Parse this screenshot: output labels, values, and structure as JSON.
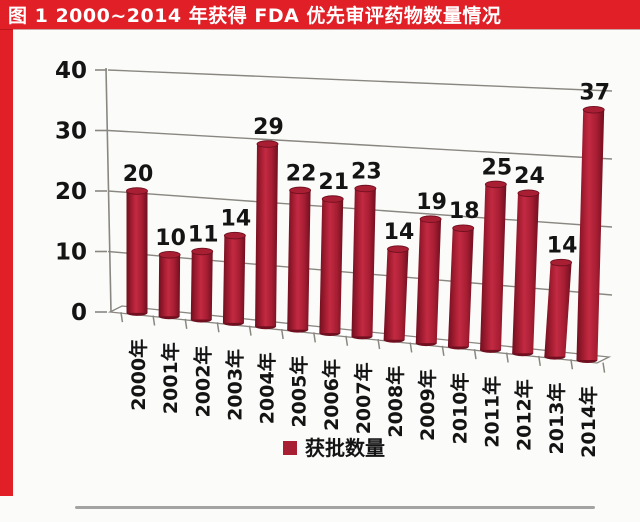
{
  "figure": {
    "title": "图 1  2000~2014 年获得 FDA 优先审评药物数量情况"
  },
  "colors": {
    "accent_red": "#e01f27",
    "bar_color": "#a81e33",
    "bar_color_light": "#c22a42",
    "bar_color_dark": "#6f0f1f",
    "grid_color": "#8a8781",
    "label_color": "#141414",
    "separator_color": "#a3a3a3"
  },
  "chart_data": {
    "type": "bar",
    "style": "3d-cylinder",
    "title": "2000~2014 年获得 FDA 优先审评药物数量情况",
    "categories": [
      "2000年",
      "2001年",
      "2002年",
      "2003年",
      "2004年",
      "2005年",
      "2006年",
      "2007年",
      "2008年",
      "2009年",
      "2010年",
      "2011年",
      "2012年",
      "2013年",
      "2014年"
    ],
    "series": [
      {
        "name": "获批数量",
        "values": [
          20,
          10,
          11,
          14,
          29,
          22,
          21,
          23,
          14,
          19,
          18,
          25,
          24,
          14,
          37
        ]
      }
    ],
    "xlabel": "",
    "ylabel": "",
    "ylim": [
      0,
      40
    ],
    "yticks": [
      0,
      10,
      20,
      30,
      40
    ],
    "grid": true,
    "data_labels": true,
    "legend": {
      "label": "获批数量",
      "position": "bottom"
    }
  }
}
